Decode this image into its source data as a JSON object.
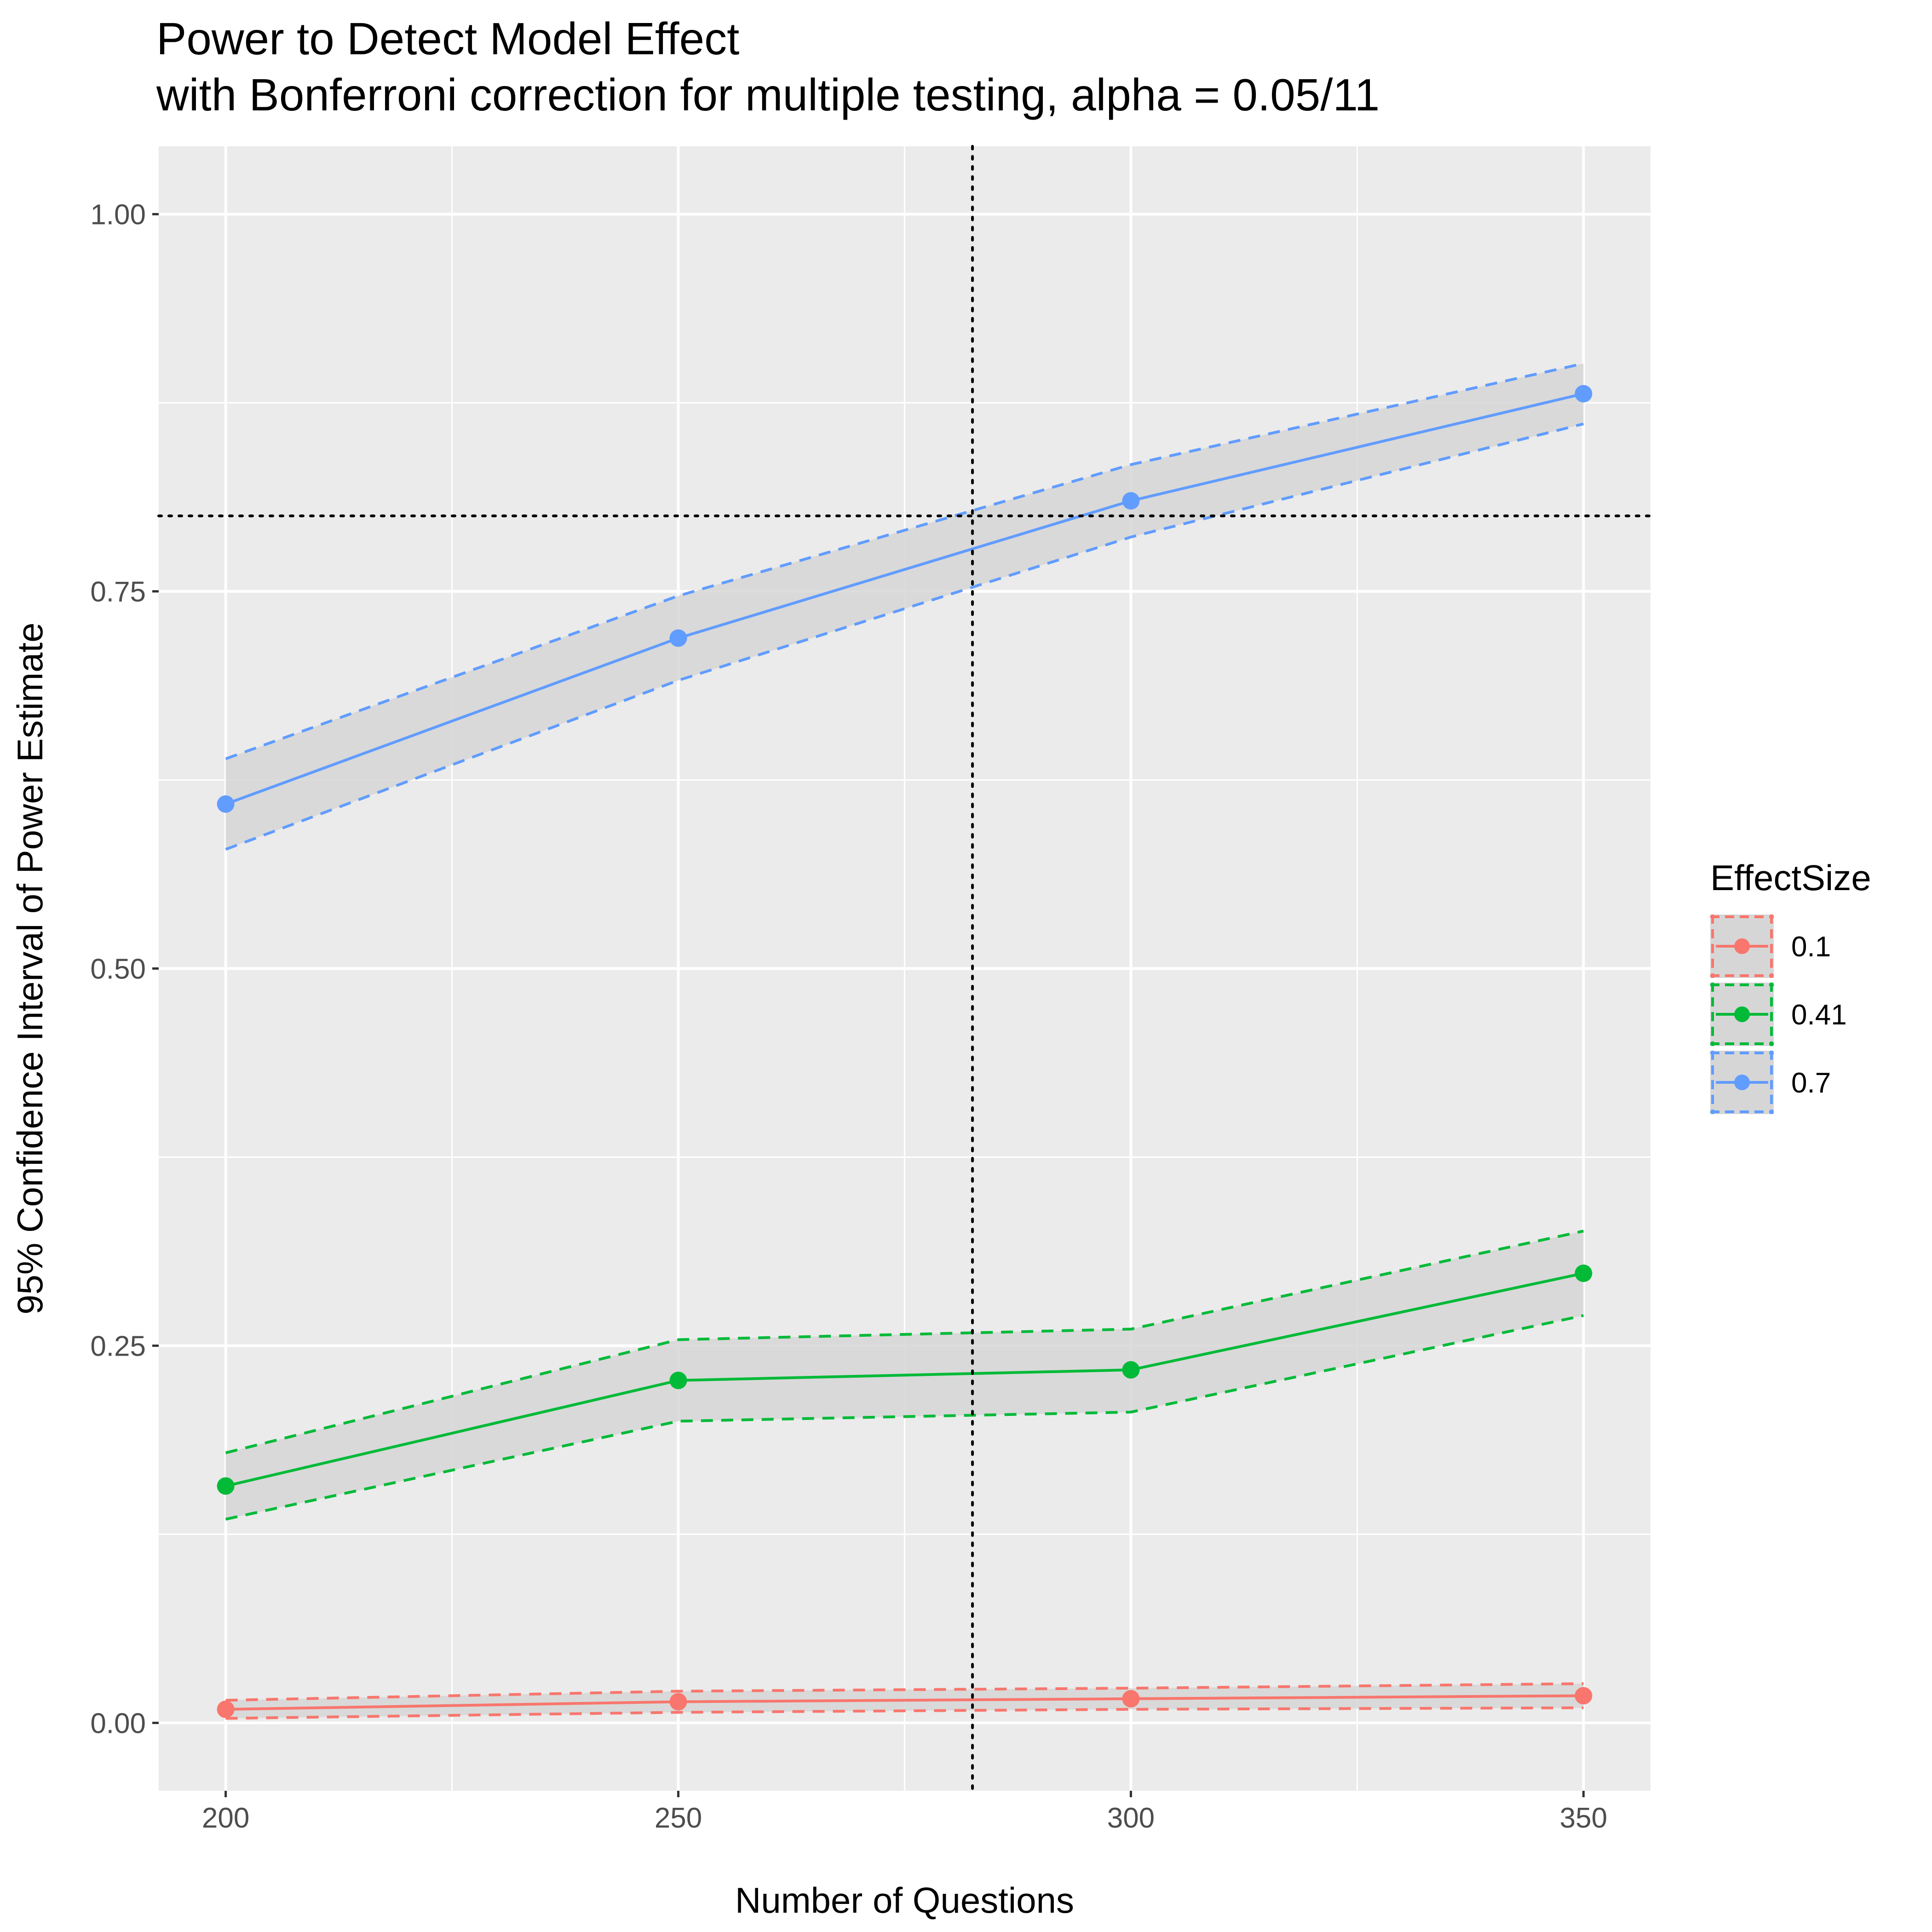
{
  "chart_data": {
    "type": "line",
    "title": "Power to Detect Model Effect",
    "subtitle": "with Bonferroni correction for multiple testing, alpha = 0.05/11",
    "xlabel": "Number of Questions",
    "ylabel": "95% Confidence Interval of Power Estimate",
    "x": [
      200,
      250,
      300,
      350
    ],
    "x_ticks": [
      200,
      250,
      300,
      350
    ],
    "x_tick_labels": [
      "200",
      "250",
      "300",
      "350"
    ],
    "y_ticks": [
      0,
      0.25,
      0.5,
      0.75,
      1.0
    ],
    "y_tick_labels": [
      "0.00",
      "0.25",
      "0.50",
      "0.75",
      "1.00"
    ],
    "xlim": [
      192.6,
      357.4
    ],
    "ylim": [
      -0.045,
      1.045
    ],
    "grid": true,
    "legend": {
      "title": "EffectSize",
      "position": "right"
    },
    "reference_lines": [
      {
        "orientation": "vertical",
        "value": 282.5,
        "style": "dotted"
      },
      {
        "orientation": "horizontal",
        "value": 0.8,
        "style": "dotted"
      }
    ],
    "series": [
      {
        "name": "0.1",
        "color": "#F8766D",
        "values": [
          0.009,
          0.014,
          0.016,
          0.018
        ],
        "lower": [
          0.003,
          0.007,
          0.009,
          0.01
        ],
        "upper": [
          0.015,
          0.021,
          0.023,
          0.026
        ]
      },
      {
        "name": "0.41",
        "color": "#00BA38",
        "values": [
          0.157,
          0.227,
          0.234,
          0.298
        ],
        "lower": [
          0.135,
          0.2,
          0.206,
          0.27
        ],
        "upper": [
          0.179,
          0.254,
          0.261,
          0.326
        ]
      },
      {
        "name": "0.7",
        "color": "#619CFF",
        "values": [
          0.609,
          0.719,
          0.81,
          0.881
        ],
        "lower": [
          0.579,
          0.691,
          0.786,
          0.861
        ],
        "upper": [
          0.639,
          0.747,
          0.834,
          0.901
        ]
      }
    ]
  }
}
